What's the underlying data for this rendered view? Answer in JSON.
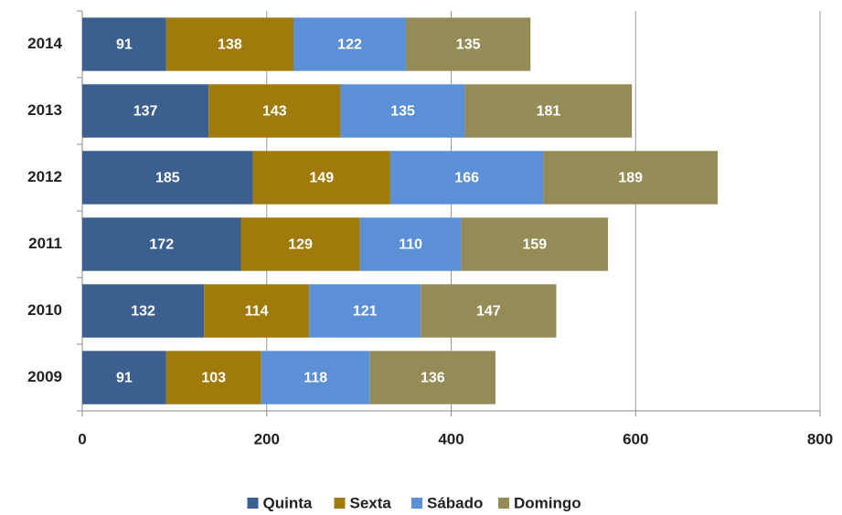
{
  "chart_data": {
    "type": "stacked_barh",
    "categories": [
      "2014",
      "2013",
      "2012",
      "2011",
      "2010",
      "2009"
    ],
    "series": [
      {
        "name": "Quinta",
        "color": "#3b5f8f",
        "values": [
          91,
          137,
          185,
          172,
          132,
          91
        ]
      },
      {
        "name": "Sexta",
        "color": "#a07a0a",
        "values": [
          138,
          143,
          149,
          129,
          114,
          103
        ]
      },
      {
        "name": "Sábado",
        "color": "#5b8fd6",
        "values": [
          122,
          135,
          166,
          110,
          121,
          118
        ]
      },
      {
        "name": "Domingo",
        "color": "#958b57",
        "values": [
          135,
          181,
          189,
          159,
          147,
          136
        ]
      }
    ],
    "xlim": [
      0,
      800
    ],
    "xticks": [
      0,
      200,
      400,
      600,
      800
    ],
    "grid": true,
    "legend": "bottom"
  }
}
